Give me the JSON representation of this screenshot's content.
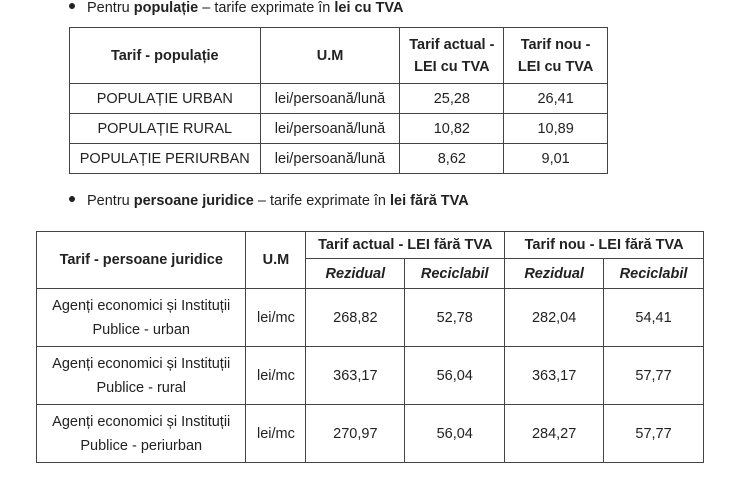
{
  "bullet1": {
    "prefix": "Pentru ",
    "bold1": "populație",
    "middle": " – tarife exprimate în ",
    "bold2": "lei cu TVA"
  },
  "table1": {
    "headers": [
      "Tarif - populație",
      "U.M",
      "Tarif actual - LEI cu TVA",
      "Tarif nou - LEI cu TVA"
    ],
    "rows": [
      [
        "POPULAȚIE URBAN",
        "lei/persoană/lună",
        "25,28",
        "26,41"
      ],
      [
        "POPULAȚIE RURAL",
        "lei/persoană/lună",
        "10,82",
        "10,89"
      ],
      [
        "POPULAȚIE PERIURBAN",
        "lei/persoană/lună",
        "8,62",
        "9,01"
      ]
    ]
  },
  "bullet2": {
    "prefix": "Pentru ",
    "bold1": "persoane juridice",
    "middle": " – tarife exprimate în ",
    "bold2": "lei fără TVA"
  },
  "table2": {
    "headers": [
      "Tarif - persoane juridice",
      "U.M",
      "Tarif actual - LEI fără TVA",
      "Tarif nou - LEI fără TVA"
    ],
    "subheaders": [
      "Rezidual",
      "Reciclabil",
      "Rezidual",
      "Reciclabil"
    ],
    "rows": [
      [
        "Agenți economici și Instituții Publice - urban",
        "lei/mc",
        "268,82",
        "52,78",
        "282,04",
        "54,41"
      ],
      [
        "Agenți economici și Instituții Publice - rural",
        "lei/mc",
        "363,17",
        "56,04",
        "363,17",
        "57,77"
      ],
      [
        "Agenți economici și Instituții Publice - periurban",
        "lei/mc",
        "270,97",
        "56,04",
        "284,27",
        "57,77"
      ]
    ]
  }
}
